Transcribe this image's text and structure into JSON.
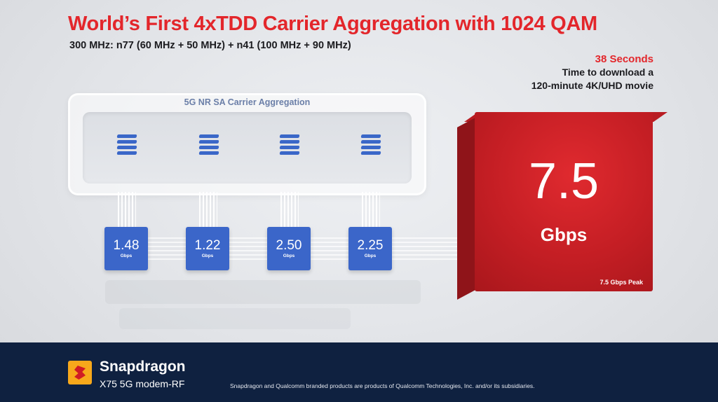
{
  "header": {
    "title": "World’s First 4xTDD Carrier Aggregation with 1024 QAM",
    "subtitle": "300 MHz: n77 (60 MHz + 50 MHz) + n41 (100 MHz + 90 MHz)"
  },
  "stat": {
    "seconds": "38 Seconds",
    "line1": "Time to download a",
    "line2": "120-minute 4K/UHD movie"
  },
  "panel": {
    "label": "5G NR SA Carrier Aggregation"
  },
  "carriers": [
    {
      "value": "1.48",
      "unit": "Gbps"
    },
    {
      "value": "1.22",
      "unit": "Gbps"
    },
    {
      "value": "2.50",
      "unit": "Gbps"
    },
    {
      "value": "2.25",
      "unit": "Gbps"
    }
  ],
  "total": {
    "value": "7.5",
    "unit": "Gbps",
    "peak": "7.5 Gbps Peak"
  },
  "footer": {
    "brand": "Snapdragon",
    "product": "X75 5G modem-RF",
    "legal": "Snapdragon and Qualcomm branded products are products of Qualcomm Technologies, Inc. and/or its subsidiaries."
  },
  "colors": {
    "accent_red": "#e3262b",
    "carrier_blue": "#3b66c9",
    "footer_navy": "#0f2140",
    "logo_orange": "#f7a81b"
  }
}
